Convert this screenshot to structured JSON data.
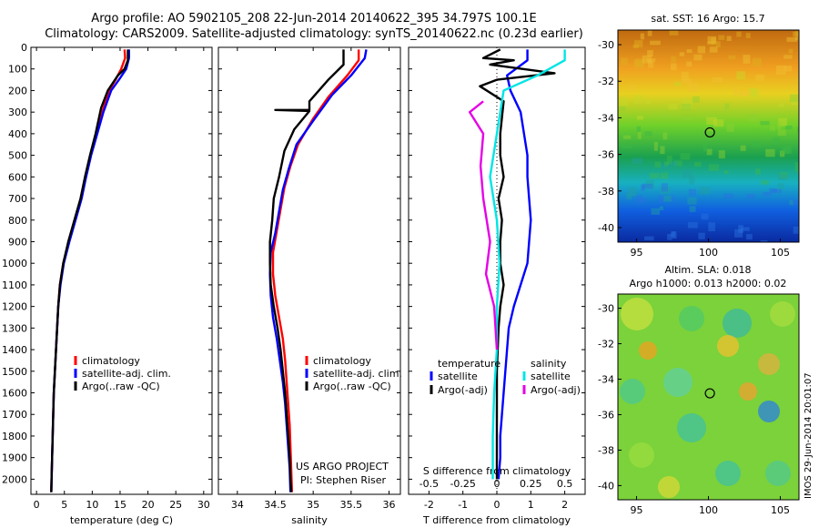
{
  "header": {
    "line1": "Argo profile: AO 5902105_208 22-Jun-2014 20140622_395 34.797S 100.1E",
    "line2": "Climatology: CARS2009. Satellite-adjusted climatology: synTS_20140622.nc (0.23d earlier)"
  },
  "colors": {
    "climatology": "#ff0000",
    "satellite": "#0000ff",
    "argo": "#000000",
    "sat_sal": "#00e5e5",
    "argo_sal": "#e600e6"
  },
  "chart_data": [
    {
      "type": "line",
      "title": "",
      "xlabel": "temperature (deg C)",
      "ylabel": "",
      "xlim": [
        -1,
        31.5
      ],
      "ylim": [
        2070,
        0
      ],
      "xticks": [
        0,
        5,
        10,
        15,
        20,
        25,
        30
      ],
      "yticks": [
        0,
        100,
        200,
        300,
        400,
        500,
        600,
        700,
        800,
        900,
        1000,
        1100,
        1200,
        1300,
        1400,
        1500,
        1600,
        1700,
        1800,
        1900,
        2000
      ],
      "legend": [
        "climatology",
        "satellite-adj. clim.",
        "Argo(..raw -QC)"
      ],
      "series": [
        {
          "name": "climatology",
          "color": "#ff0000",
          "points": [
            [
              15.8,
              10
            ],
            [
              15.9,
              50
            ],
            [
              15.2,
              100
            ],
            [
              14.2,
              150
            ],
            [
              13.0,
              200
            ],
            [
              11.8,
              300
            ],
            [
              10.8,
              400
            ],
            [
              9.7,
              500
            ],
            [
              8.8,
              600
            ],
            [
              8.0,
              700
            ],
            [
              6.9,
              800
            ],
            [
              5.8,
              900
            ],
            [
              4.8,
              1000
            ],
            [
              4.2,
              1100
            ],
            [
              3.9,
              1200
            ],
            [
              3.7,
              1300
            ],
            [
              3.5,
              1400
            ],
            [
              3.3,
              1500
            ],
            [
              3.1,
              1600
            ],
            [
              3.0,
              1700
            ],
            [
              2.9,
              1800
            ],
            [
              2.8,
              1900
            ],
            [
              2.7,
              2000
            ],
            [
              2.65,
              2060
            ]
          ]
        },
        {
          "name": "satellite-adj. clim.",
          "color": "#0000ff",
          "points": [
            [
              16.6,
              10
            ],
            [
              16.6,
              50
            ],
            [
              16.1,
              100
            ],
            [
              14.8,
              150
            ],
            [
              13.4,
              200
            ],
            [
              12.0,
              300
            ],
            [
              10.9,
              400
            ],
            [
              9.8,
              500
            ],
            [
              8.9,
              600
            ],
            [
              8.1,
              700
            ],
            [
              7.0,
              800
            ],
            [
              5.9,
              900
            ],
            [
              4.9,
              1000
            ],
            [
              4.3,
              1100
            ],
            [
              3.9,
              1200
            ],
            [
              3.7,
              1300
            ],
            [
              3.5,
              1400
            ],
            [
              3.3,
              1500
            ],
            [
              3.1,
              1600
            ],
            [
              3.0,
              1700
            ],
            [
              2.9,
              1800
            ],
            [
              2.8,
              1900
            ],
            [
              2.7,
              2000
            ],
            [
              2.65,
              2060
            ]
          ]
        },
        {
          "name": "Argo(..raw -QC)",
          "color": "#000000",
          "points": [
            [
              16.4,
              10
            ],
            [
              16.4,
              60
            ],
            [
              15.8,
              100
            ],
            [
              14.6,
              130
            ],
            [
              12.8,
              200
            ],
            [
              11.6,
              280
            ],
            [
              10.6,
              400
            ],
            [
              9.6,
              500
            ],
            [
              8.7,
              600
            ],
            [
              7.9,
              700
            ],
            [
              6.8,
              800
            ],
            [
              5.7,
              900
            ],
            [
              4.8,
              1000
            ],
            [
              4.2,
              1100
            ],
            [
              3.9,
              1200
            ],
            [
              3.7,
              1300
            ],
            [
              3.5,
              1400
            ],
            [
              3.3,
              1500
            ],
            [
              3.1,
              1600
            ],
            [
              3.0,
              1700
            ],
            [
              2.9,
              1800
            ],
            [
              2.8,
              1900
            ],
            [
              2.7,
              2000
            ],
            [
              2.65,
              2060
            ]
          ]
        }
      ]
    },
    {
      "type": "line",
      "title": "",
      "xlabel": "salinity",
      "ylabel": "",
      "xlim": [
        33.75,
        36.15
      ],
      "ylim": [
        2070,
        0
      ],
      "xticks": [
        34,
        34.5,
        35,
        35.5,
        36
      ],
      "legend": [
        "climatology",
        "satellite-adj. clim.",
        "Argo(..raw -QC)"
      ],
      "annotation": [
        "US ARGO PROJECT",
        "PI: Stephen Riser"
      ],
      "series": [
        {
          "name": "climatology",
          "color": "#ff0000",
          "points": [
            [
              35.6,
              10
            ],
            [
              35.6,
              60
            ],
            [
              35.45,
              130
            ],
            [
              35.2,
              230
            ],
            [
              35.0,
              330
            ],
            [
              34.8,
              450
            ],
            [
              34.7,
              550
            ],
            [
              34.62,
              650
            ],
            [
              34.57,
              750
            ],
            [
              34.52,
              850
            ],
            [
              34.47,
              950
            ],
            [
              34.47,
              1050
            ],
            [
              34.5,
              1150
            ],
            [
              34.55,
              1250
            ],
            [
              34.6,
              1350
            ],
            [
              34.63,
              1450
            ],
            [
              34.65,
              1550
            ],
            [
              34.67,
              1650
            ],
            [
              34.69,
              1750
            ],
            [
              34.7,
              1850
            ],
            [
              34.71,
              1950
            ],
            [
              34.72,
              2060
            ]
          ]
        },
        {
          "name": "satellite-adj. clim.",
          "color": "#0000ff",
          "points": [
            [
              35.7,
              10
            ],
            [
              35.68,
              50
            ],
            [
              35.5,
              130
            ],
            [
              35.25,
              220
            ],
            [
              35.0,
              340
            ],
            [
              34.78,
              450
            ],
            [
              34.68,
              560
            ],
            [
              34.6,
              660
            ],
            [
              34.55,
              760
            ],
            [
              34.5,
              860
            ],
            [
              34.44,
              950
            ],
            [
              34.43,
              1050
            ],
            [
              34.44,
              1150
            ],
            [
              34.47,
              1250
            ],
            [
              34.52,
              1350
            ],
            [
              34.56,
              1450
            ],
            [
              34.6,
              1550
            ],
            [
              34.63,
              1650
            ],
            [
              34.65,
              1750
            ],
            [
              34.67,
              1850
            ],
            [
              34.69,
              1950
            ],
            [
              34.7,
              2060
            ]
          ]
        },
        {
          "name": "Argo(..raw -QC)",
          "color": "#000000",
          "points": [
            [
              35.4,
              10
            ],
            [
              35.4,
              80
            ],
            [
              35.2,
              150
            ],
            [
              34.95,
              250
            ],
            [
              34.95,
              290
            ],
            [
              34.5,
              290
            ],
            [
              34.95,
              295
            ],
            [
              34.75,
              380
            ],
            [
              34.62,
              480
            ],
            [
              34.55,
              600
            ],
            [
              34.48,
              700
            ],
            [
              34.46,
              800
            ],
            [
              34.43,
              900
            ],
            [
              34.43,
              1000
            ],
            [
              34.44,
              1100
            ],
            [
              34.48,
              1200
            ],
            [
              34.53,
              1300
            ],
            [
              34.57,
              1400
            ],
            [
              34.6,
              1500
            ],
            [
              34.63,
              1600
            ],
            [
              34.65,
              1700
            ],
            [
              34.67,
              1800
            ],
            [
              34.69,
              1900
            ],
            [
              34.7,
              2000
            ],
            [
              34.71,
              2060
            ]
          ]
        }
      ]
    },
    {
      "type": "line",
      "title": "",
      "xlabel": "T difference from climatology",
      "xlabel2": "S difference from climatology",
      "ylabel": "",
      "xlim": [
        -2.6,
        2.6
      ],
      "ylim": [
        2070,
        0
      ],
      "xticks_T": [
        "-2",
        "-1",
        "0",
        "1",
        "2"
      ],
      "xticks_S": [
        "-0.5",
        "-0.25",
        "0",
        "0.25",
        "0.5"
      ],
      "legend_T_title": "temperature",
      "legend_S_title": "salinity",
      "legend": [
        "satellite",
        "Argo(-adj)",
        "satellite",
        "Argo(-adj)"
      ],
      "series": [
        {
          "name": "temperature satellite",
          "color": "#0000ff",
          "points": [
            [
              0.9,
              10
            ],
            [
              0.9,
              60
            ],
            [
              0.3,
              130
            ],
            [
              0.4,
              200
            ],
            [
              0.7,
              300
            ],
            [
              0.8,
              400
            ],
            [
              0.9,
              500
            ],
            [
              0.9,
              600
            ],
            [
              0.95,
              700
            ],
            [
              1.0,
              800
            ],
            [
              0.95,
              900
            ],
            [
              0.9,
              1000
            ],
            [
              0.7,
              1100
            ],
            [
              0.5,
              1200
            ],
            [
              0.35,
              1300
            ],
            [
              0.3,
              1400
            ],
            [
              0.25,
              1500
            ],
            [
              0.2,
              1600
            ],
            [
              0.15,
              1700
            ],
            [
              0.1,
              1800
            ],
            [
              0.1,
              1900
            ],
            [
              0.05,
              2000
            ]
          ]
        },
        {
          "name": "temperature Argo(-adj)",
          "color": "#000000",
          "points": [
            [
              0.1,
              10
            ],
            [
              -0.4,
              50
            ],
            [
              0.5,
              60
            ],
            [
              -0.2,
              80
            ],
            [
              1.7,
              120
            ],
            [
              0,
              150
            ],
            [
              -0.5,
              180
            ],
            [
              0.2,
              250
            ],
            [
              0.1,
              400
            ],
            [
              0.1,
              500
            ],
            [
              0.2,
              600
            ],
            [
              0.05,
              700
            ],
            [
              0.15,
              800
            ],
            [
              0.1,
              900
            ],
            [
              0.1,
              1000
            ],
            [
              0.2,
              1100
            ],
            [
              0.1,
              1200
            ],
            [
              0.05,
              1300
            ],
            [
              0.0,
              1500
            ],
            [
              0.0,
              2000
            ]
          ]
        },
        {
          "name": "salinity satellite",
          "color": "#00e5e5",
          "points": [
            [
              0.5,
              10
            ],
            [
              0.5,
              60
            ],
            [
              0.3,
              130
            ],
            [
              0.05,
              200
            ],
            [
              0.0,
              400
            ],
            [
              -0.05,
              600
            ],
            [
              0.0,
              800
            ],
            [
              0.02,
              1000
            ],
            [
              0.0,
              1200
            ],
            [
              0.0,
              1400
            ],
            [
              -0.02,
              1600
            ],
            [
              -0.03,
              1800
            ],
            [
              -0.03,
              2000
            ]
          ]
        },
        {
          "name": "salinity Argo(-adj)",
          "color": "#e600e6",
          "points": [
            [
              -0.1,
              250
            ],
            [
              -0.2,
              300
            ],
            [
              -0.1,
              400
            ],
            [
              -0.12,
              550
            ],
            [
              -0.1,
              700
            ],
            [
              -0.05,
              900
            ],
            [
              -0.08,
              1050
            ],
            [
              -0.02,
              1200
            ],
            [
              0.0,
              1400
            ]
          ]
        }
      ]
    }
  ],
  "maps": {
    "sst": {
      "title": "sat. SST: 16 Argo: 15.7",
      "xticks": [
        "95",
        "100",
        "105"
      ],
      "yticks": [
        "-30",
        "-32",
        "-34",
        "-36",
        "-38",
        "-40"
      ],
      "lon_range": [
        93.7,
        106.3
      ],
      "lat_range": [
        -40.8,
        -29.2
      ],
      "marker": [
        100.1,
        -34.797
      ]
    },
    "sla": {
      "title_line1": "Altim. SLA: 0.018",
      "title_line2": "Argo h1000: 0.013 h2000: 0.02",
      "xticks": [
        "95",
        "100",
        "105"
      ],
      "yticks": [
        "-30",
        "-32",
        "-34",
        "-36",
        "-38",
        "-40"
      ],
      "lon_range": [
        93.7,
        106.3
      ],
      "lat_range": [
        -40.8,
        -29.2
      ],
      "marker": [
        100.1,
        -34.797
      ]
    }
  },
  "footer": {
    "stamp": "IMOS 29-Jun-2014 20:01:07"
  }
}
